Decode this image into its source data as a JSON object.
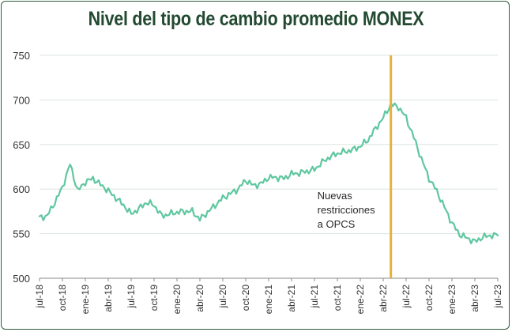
{
  "title": "Nivel del tipo de cambio promedio MONEX",
  "colors": {
    "line": "#5fc7a0",
    "vline": "#e8b13a",
    "title": "#234a31",
    "grid": "#dde5e0"
  },
  "chart_data": {
    "type": "line",
    "title": "Nivel del tipo de cambio promedio MONEX",
    "xlabel": "",
    "ylabel": "",
    "ylim": [
      500,
      750
    ],
    "yticks": [
      500,
      550,
      600,
      650,
      700,
      750
    ],
    "xlim": [
      "2018-07",
      "2023-07"
    ],
    "xticks": [
      "jul-18",
      "oct-18",
      "ene-19",
      "abr-19",
      "jul-19",
      "oct-19",
      "ene-20",
      "abr-20",
      "jul-20",
      "oct-20",
      "ene-21",
      "abr-21",
      "jul-21",
      "oct-21",
      "ene-22",
      "abr-22",
      "jul-22",
      "oct-22",
      "ene-23",
      "abr-23",
      "jul-23"
    ],
    "grid": "horizontal",
    "series": [
      {
        "color": "#5fc7a0",
        "x": [
          "2018-07",
          "2018-08",
          "2018-09",
          "2018-10",
          "2018-11",
          "2018-12",
          "2019-01",
          "2019-02",
          "2019-03",
          "2019-04",
          "2019-05",
          "2019-06",
          "2019-07",
          "2019-08",
          "2019-09",
          "2019-10",
          "2019-11",
          "2019-12",
          "2020-01",
          "2020-02",
          "2020-03",
          "2020-04",
          "2020-05",
          "2020-06",
          "2020-07",
          "2020-08",
          "2020-09",
          "2020-10",
          "2020-11",
          "2020-12",
          "2021-01",
          "2021-02",
          "2021-03",
          "2021-04",
          "2021-05",
          "2021-06",
          "2021-07",
          "2021-08",
          "2021-09",
          "2021-10",
          "2021-11",
          "2021-12",
          "2022-01",
          "2022-02",
          "2022-03",
          "2022-04",
          "2022-05",
          "2022-06",
          "2022-07",
          "2022-08",
          "2022-09",
          "2022-10",
          "2022-11",
          "2022-12",
          "2023-01",
          "2023-02",
          "2023-03",
          "2023-04",
          "2023-05",
          "2023-06",
          "2023-07"
        ],
        "values": [
          568,
          570,
          585,
          602,
          628,
          598,
          608,
          612,
          605,
          598,
          590,
          582,
          572,
          578,
          585,
          582,
          570,
          572,
          574,
          575,
          575,
          566,
          574,
          582,
          590,
          595,
          600,
          610,
          604,
          606,
          613,
          613,
          612,
          617,
          618,
          620,
          622,
          630,
          636,
          640,
          642,
          644,
          648,
          655,
          668,
          680,
          695,
          692,
          680,
          658,
          634,
          612,
          598,
          580,
          562,
          549,
          545,
          541,
          546,
          548,
          548
        ]
      }
    ],
    "annotations": [
      {
        "x": "2022-05",
        "text": [
          "Nuevas",
          "restricciones",
          "a OPCS"
        ]
      }
    ]
  }
}
